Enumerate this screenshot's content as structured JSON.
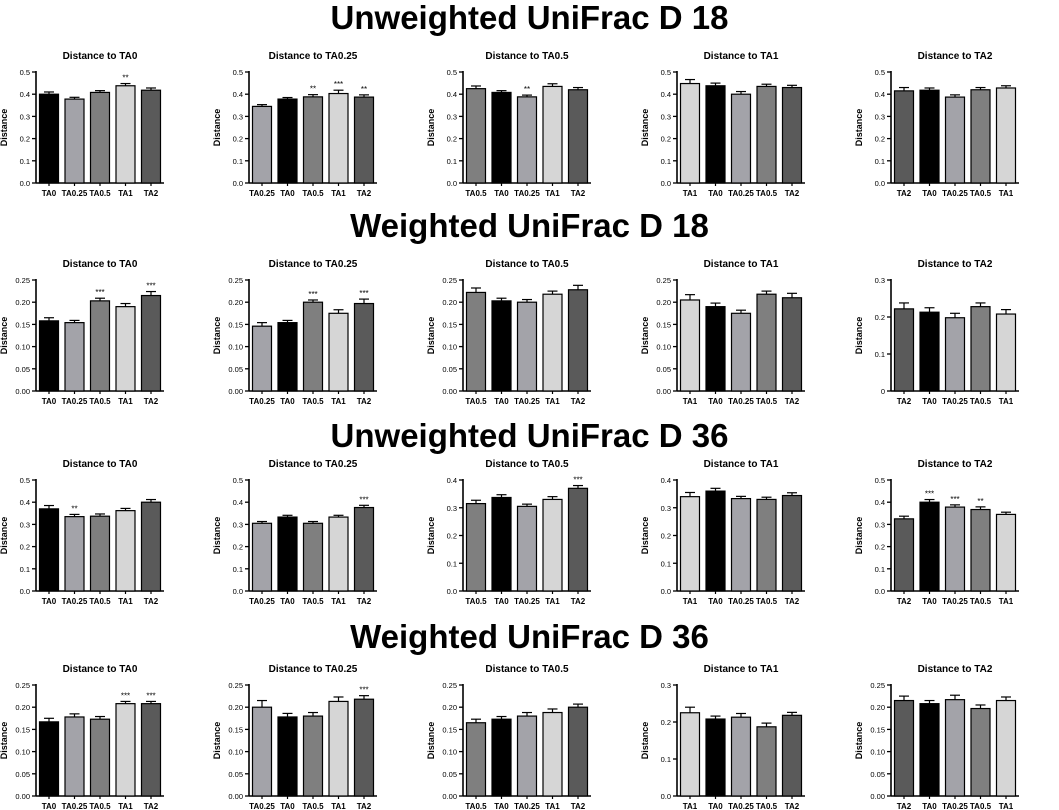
{
  "sections": [
    {
      "title": "Unweighted UniFrac D 18"
    },
    {
      "title": "Weighted UniFrac D 18"
    },
    {
      "title": "Unweighted UniFrac D 36"
    },
    {
      "title": "Weighted UniFrac D 36"
    }
  ],
  "colors": {
    "TA0": "#000000",
    "TA0.25": "#a3a3a9",
    "TA0.5": "#7f7f7f",
    "TA1": "#d6d6d6",
    "TA2": "#5a5a5a"
  },
  "chart_data": [
    {
      "type": "bar",
      "section": 0,
      "title": "Distance to TA0",
      "ylabel": "Distance",
      "ylim": [
        0,
        0.5
      ],
      "yticks": [
        "0.0",
        "0.1",
        "0.2",
        "0.3",
        "0.4",
        "0.5"
      ],
      "categories": [
        "TA0",
        "TA0.25",
        "TA0.5",
        "TA1",
        "TA2"
      ],
      "values": [
        0.4,
        0.378,
        0.408,
        0.438,
        0.418
      ],
      "errors": [
        0.01,
        0.008,
        0.008,
        0.01,
        0.01
      ],
      "annotations": [
        "",
        "",
        "",
        "**",
        ""
      ]
    },
    {
      "type": "bar",
      "section": 0,
      "title": "Distance to TA0.25",
      "ylabel": "Distance",
      "ylim": [
        0,
        0.5
      ],
      "yticks": [
        "0.0",
        "0.1",
        "0.2",
        "0.3",
        "0.4",
        "0.5"
      ],
      "categories": [
        "TA0.25",
        "TA0",
        "TA0.5",
        "TA1",
        "TA2"
      ],
      "values": [
        0.345,
        0.378,
        0.388,
        0.403,
        0.387
      ],
      "errors": [
        0.008,
        0.007,
        0.01,
        0.015,
        0.01
      ],
      "annotations": [
        "",
        "",
        "**",
        "***",
        "**"
      ]
    },
    {
      "type": "bar",
      "section": 0,
      "title": "Distance to TA0.5",
      "ylabel": "Distance",
      "ylim": [
        0,
        0.5
      ],
      "yticks": [
        "0.0",
        "0.1",
        "0.2",
        "0.3",
        "0.4",
        "0.5"
      ],
      "categories": [
        "TA0.5",
        "TA0",
        "TA0.25",
        "TA1",
        "TA2"
      ],
      "values": [
        0.425,
        0.408,
        0.388,
        0.435,
        0.42
      ],
      "errors": [
        0.012,
        0.008,
        0.008,
        0.012,
        0.01
      ],
      "annotations": [
        "",
        "",
        "**",
        "",
        ""
      ]
    },
    {
      "type": "bar",
      "section": 0,
      "title": "Distance to TA1",
      "ylabel": "Distance",
      "ylim": [
        0,
        0.5
      ],
      "yticks": [
        "0.0",
        "0.1",
        "0.2",
        "0.3",
        "0.4",
        "0.5"
      ],
      "categories": [
        "TA1",
        "TA0",
        "TA0.25",
        "TA0.5",
        "TA2"
      ],
      "values": [
        0.448,
        0.438,
        0.4,
        0.435,
        0.43
      ],
      "errors": [
        0.018,
        0.012,
        0.012,
        0.01,
        0.01
      ],
      "annotations": [
        "",
        "",
        "",
        "",
        ""
      ]
    },
    {
      "type": "bar",
      "section": 0,
      "title": "Distance to TA2",
      "ylabel": "Distance",
      "ylim": [
        0,
        0.5
      ],
      "yticks": [
        "0.0",
        "0.1",
        "0.2",
        "0.3",
        "0.4",
        "0.5"
      ],
      "categories": [
        "TA2",
        "TA0",
        "TA0.25",
        "TA0.5",
        "TA1"
      ],
      "values": [
        0.415,
        0.418,
        0.387,
        0.42,
        0.428
      ],
      "errors": [
        0.015,
        0.01,
        0.01,
        0.01,
        0.01
      ],
      "annotations": [
        "",
        "",
        "",
        "",
        ""
      ]
    },
    {
      "type": "bar",
      "section": 1,
      "title": "Distance to TA0",
      "ylabel": "Distance",
      "ylim": [
        0,
        0.25
      ],
      "yticks": [
        "0.00",
        "0.05",
        "0.10",
        "0.15",
        "0.20",
        "0.25"
      ],
      "categories": [
        "TA0",
        "TA0.25",
        "TA0.5",
        "TA1",
        "TA2"
      ],
      "values": [
        0.158,
        0.154,
        0.203,
        0.19,
        0.215
      ],
      "errors": [
        0.007,
        0.005,
        0.006,
        0.007,
        0.009
      ],
      "annotations": [
        "",
        "",
        "***",
        "",
        "***"
      ]
    },
    {
      "type": "bar",
      "section": 1,
      "title": "Distance to TA0.25",
      "ylabel": "Distance",
      "ylim": [
        0,
        0.25
      ],
      "yticks": [
        "0.00",
        "0.05",
        "0.10",
        "0.15",
        "0.20",
        "0.25"
      ],
      "categories": [
        "TA0.25",
        "TA0",
        "TA0.5",
        "TA1",
        "TA2"
      ],
      "values": [
        0.146,
        0.154,
        0.2,
        0.175,
        0.197
      ],
      "errors": [
        0.008,
        0.005,
        0.005,
        0.008,
        0.01
      ],
      "annotations": [
        "",
        "",
        "***",
        "",
        "***"
      ]
    },
    {
      "type": "bar",
      "section": 1,
      "title": "Distance to TA0.5",
      "ylabel": "Distance",
      "ylim": [
        0,
        0.25
      ],
      "yticks": [
        "0.00",
        "0.05",
        "0.10",
        "0.15",
        "0.20",
        "0.25"
      ],
      "categories": [
        "TA0.5",
        "TA0",
        "TA0.25",
        "TA1",
        "TA2"
      ],
      "values": [
        0.222,
        0.203,
        0.2,
        0.218,
        0.228
      ],
      "errors": [
        0.01,
        0.006,
        0.006,
        0.007,
        0.01
      ],
      "annotations": [
        "",
        "",
        "",
        "",
        ""
      ]
    },
    {
      "type": "bar",
      "section": 1,
      "title": "Distance to TA1",
      "ylabel": "Distance",
      "ylim": [
        0,
        0.25
      ],
      "yticks": [
        "0.00",
        "0.05",
        "0.10",
        "0.15",
        "0.20",
        "0.25"
      ],
      "categories": [
        "TA1",
        "TA0",
        "TA0.25",
        "TA0.5",
        "TA2"
      ],
      "values": [
        0.205,
        0.19,
        0.175,
        0.218,
        0.21
      ],
      "errors": [
        0.012,
        0.008,
        0.007,
        0.007,
        0.01
      ],
      "annotations": [
        "",
        "",
        "",
        "",
        ""
      ]
    },
    {
      "type": "bar",
      "section": 1,
      "title": "Distance to TA2",
      "ylabel": "Distance",
      "ylim": [
        0,
        0.3
      ],
      "yticks": [
        "0",
        "0.1",
        "0.2",
        "0.3"
      ],
      "categories": [
        "TA2",
        "TA0",
        "TA0.25",
        "TA0.5",
        "TA1"
      ],
      "values": [
        0.222,
        0.213,
        0.198,
        0.228,
        0.208
      ],
      "errors": [
        0.016,
        0.012,
        0.012,
        0.01,
        0.012
      ],
      "annotations": [
        "",
        "",
        "",
        "",
        ""
      ]
    },
    {
      "type": "bar",
      "section": 2,
      "title": "Distance to TA0",
      "ylabel": "Distance",
      "ylim": [
        0,
        0.5
      ],
      "yticks": [
        "0.0",
        "0.1",
        "0.2",
        "0.3",
        "0.4",
        "0.5"
      ],
      "categories": [
        "TA0",
        "TA0.25",
        "TA0.5",
        "TA1",
        "TA2"
      ],
      "values": [
        0.37,
        0.335,
        0.337,
        0.362,
        0.4
      ],
      "errors": [
        0.015,
        0.01,
        0.01,
        0.01,
        0.012
      ],
      "annotations": [
        "",
        "**",
        "",
        "",
        ""
      ]
    },
    {
      "type": "bar",
      "section": 2,
      "title": "Distance to TA0.25",
      "ylabel": "Distance",
      "ylim": [
        0,
        0.5
      ],
      "yticks": [
        "0.0",
        "0.1",
        "0.2",
        "0.3",
        "0.4",
        "0.5"
      ],
      "categories": [
        "TA0.25",
        "TA0",
        "TA0.5",
        "TA1",
        "TA2"
      ],
      "values": [
        0.305,
        0.333,
        0.305,
        0.333,
        0.376
      ],
      "errors": [
        0.008,
        0.008,
        0.008,
        0.008,
        0.01
      ],
      "annotations": [
        "",
        "",
        "",
        "",
        "***"
      ]
    },
    {
      "type": "bar",
      "section": 2,
      "title": "Distance to TA0.5",
      "ylabel": "Distance",
      "ylim": [
        0,
        0.4
      ],
      "yticks": [
        "0.0",
        "0.1",
        "0.2",
        "0.3",
        "0.4"
      ],
      "categories": [
        "TA0.5",
        "TA0",
        "TA0.25",
        "TA1",
        "TA2"
      ],
      "values": [
        0.315,
        0.337,
        0.305,
        0.33,
        0.37
      ],
      "errors": [
        0.012,
        0.01,
        0.008,
        0.01,
        0.01
      ],
      "annotations": [
        "",
        "",
        "",
        "",
        "***"
      ]
    },
    {
      "type": "bar",
      "section": 2,
      "title": "Distance to TA1",
      "ylabel": "Distance",
      "ylim": [
        0,
        0.4
      ],
      "yticks": [
        "0.0",
        "0.1",
        "0.2",
        "0.3",
        "0.4"
      ],
      "categories": [
        "TA1",
        "TA0",
        "TA0.25",
        "TA0.5",
        "TA2"
      ],
      "values": [
        0.34,
        0.36,
        0.333,
        0.33,
        0.344
      ],
      "errors": [
        0.015,
        0.01,
        0.008,
        0.008,
        0.01
      ],
      "annotations": [
        "",
        "",
        "",
        "",
        ""
      ]
    },
    {
      "type": "bar",
      "section": 2,
      "title": "Distance to TA2",
      "ylabel": "Distance",
      "ylim": [
        0,
        0.5
      ],
      "yticks": [
        "0.0",
        "0.1",
        "0.2",
        "0.3",
        "0.4",
        "0.5"
      ],
      "categories": [
        "TA2",
        "TA0",
        "TA0.25",
        "TA0.5",
        "TA1"
      ],
      "values": [
        0.325,
        0.4,
        0.378,
        0.367,
        0.345
      ],
      "errors": [
        0.012,
        0.012,
        0.01,
        0.012,
        0.01
      ],
      "annotations": [
        "",
        "***",
        "***",
        "**",
        ""
      ]
    },
    {
      "type": "bar",
      "section": 3,
      "title": "Distance to TA0",
      "ylabel": "Distance",
      "ylim": [
        0,
        0.25
      ],
      "yticks": [
        "0.00",
        "0.05",
        "0.10",
        "0.15",
        "0.20",
        "0.25"
      ],
      "categories": [
        "TA0",
        "TA0.25",
        "TA0.5",
        "TA1",
        "TA2"
      ],
      "values": [
        0.167,
        0.178,
        0.173,
        0.208,
        0.208
      ],
      "errors": [
        0.008,
        0.007,
        0.006,
        0.005,
        0.005
      ],
      "annotations": [
        "",
        "",
        "",
        "***",
        "***"
      ]
    },
    {
      "type": "bar",
      "section": 3,
      "title": "Distance to TA0.25",
      "ylabel": "Distance",
      "ylim": [
        0,
        0.25
      ],
      "yticks": [
        "0.00",
        "0.05",
        "0.10",
        "0.15",
        "0.20",
        "0.25"
      ],
      "categories": [
        "TA0.25",
        "TA0",
        "TA0.5",
        "TA1",
        "TA2"
      ],
      "values": [
        0.2,
        0.178,
        0.18,
        0.213,
        0.218
      ],
      "errors": [
        0.015,
        0.008,
        0.008,
        0.01,
        0.008
      ],
      "annotations": [
        "",
        "",
        "",
        "",
        "***"
      ]
    },
    {
      "type": "bar",
      "section": 3,
      "title": "Distance to TA0.5",
      "ylabel": "Distance",
      "ylim": [
        0,
        0.25
      ],
      "yticks": [
        "0.00",
        "0.05",
        "0.10",
        "0.15",
        "0.20",
        "0.25"
      ],
      "categories": [
        "TA0.5",
        "TA0",
        "TA0.25",
        "TA1",
        "TA2"
      ],
      "values": [
        0.165,
        0.173,
        0.18,
        0.188,
        0.2
      ],
      "errors": [
        0.008,
        0.006,
        0.008,
        0.008,
        0.007
      ],
      "annotations": [
        "",
        "",
        "",
        "",
        ""
      ]
    },
    {
      "type": "bar",
      "section": 3,
      "title": "Distance to TA1",
      "ylabel": "Distance",
      "ylim": [
        0,
        0.3
      ],
      "yticks": [
        "0.0",
        "0.1",
        "0.2",
        "0.3"
      ],
      "categories": [
        "TA1",
        "TA0",
        "TA0.25",
        "TA0.5",
        "TA2"
      ],
      "values": [
        0.225,
        0.208,
        0.213,
        0.187,
        0.218
      ],
      "errors": [
        0.015,
        0.008,
        0.01,
        0.01,
        0.008
      ],
      "annotations": [
        "",
        "",
        "",
        "",
        ""
      ]
    },
    {
      "type": "bar",
      "section": 3,
      "title": "Distance to TA2",
      "ylabel": "Distance",
      "ylim": [
        0,
        0.25
      ],
      "yticks": [
        "0.00",
        "0.05",
        "0.10",
        "0.15",
        "0.20",
        "0.25"
      ],
      "categories": [
        "TA2",
        "TA0",
        "TA0.25",
        "TA0.5",
        "TA1"
      ],
      "values": [
        0.215,
        0.208,
        0.217,
        0.197,
        0.215
      ],
      "errors": [
        0.01,
        0.007,
        0.01,
        0.008,
        0.008
      ],
      "annotations": [
        "",
        "",
        "",
        "",
        ""
      ]
    }
  ]
}
